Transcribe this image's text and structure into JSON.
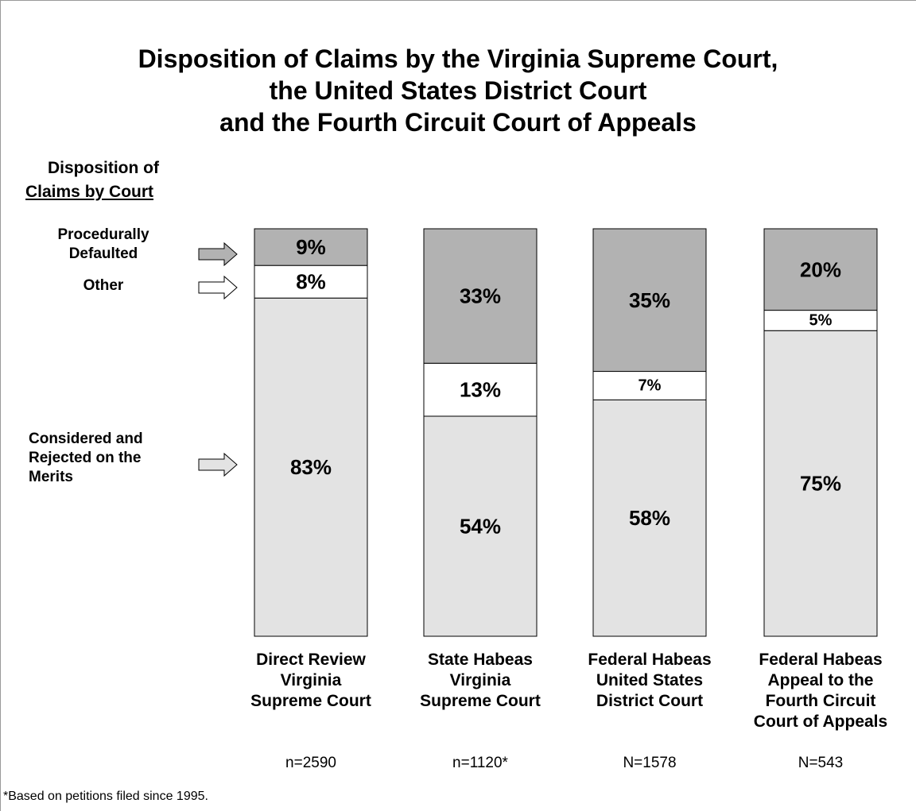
{
  "chart_data": {
    "type": "stacked_bar",
    "title": [
      "Disposition of Claims by the Virginia Supreme Court,",
      "the United States District Court",
      "and the Fourth Circuit Court of Appeals"
    ],
    "legend_title": [
      "Disposition of",
      "Claims by Court"
    ],
    "categories": [
      [
        "Direct Review",
        "Virginia",
        "Supreme Court"
      ],
      [
        "State Habeas",
        "Virginia",
        "Supreme Court"
      ],
      [
        "Federal Habeas",
        "United States",
        "District Court"
      ],
      [
        "Federal Habeas",
        "Appeal to the",
        "Fourth Circuit",
        "Court of Appeals"
      ]
    ],
    "n_labels": [
      "n=2590",
      "n=1120*",
      "N=1578",
      "N=543"
    ],
    "ylim": [
      0,
      100
    ],
    "series": [
      {
        "name": "Considered and Rejected on the Merits",
        "color": "#e3e3e3",
        "values": [
          83,
          54,
          58,
          75
        ],
        "value_labels": [
          "83%",
          "54%",
          "58%",
          "75%"
        ]
      },
      {
        "name": "Other",
        "color": "#ffffff",
        "values": [
          8,
          13,
          7,
          5
        ],
        "value_labels": [
          "8%",
          "13%",
          "7%",
          "5%"
        ]
      },
      {
        "name": "Procedurally Defaulted",
        "color": "#b2b2b2",
        "values": [
          9,
          33,
          35,
          20
        ],
        "value_labels": [
          "9%",
          "33%",
          "35%",
          "20%"
        ]
      }
    ],
    "footnote": "*Based on petitions filed since 1995."
  }
}
